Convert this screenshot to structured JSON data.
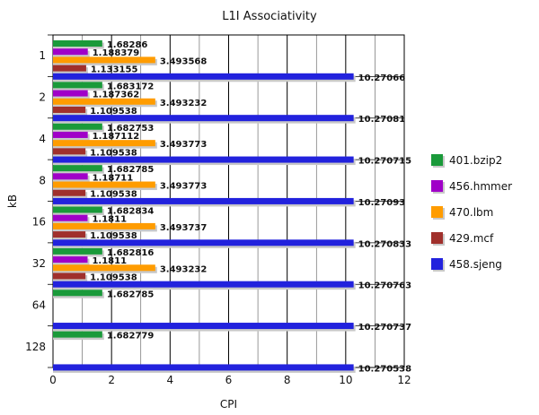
{
  "chart_data": {
    "type": "bar",
    "orientation": "horizontal",
    "title": "L1I Associativity",
    "xlabel": "CPI",
    "ylabel": "kB",
    "xlim": [
      0,
      12
    ],
    "xticks": [
      "0",
      "2",
      "4",
      "6",
      "8",
      "10",
      "12"
    ],
    "grid": true,
    "legend_position": "right",
    "categories": [
      "1",
      "2",
      "4",
      "8",
      "16",
      "32",
      "64",
      "128"
    ],
    "series": [
      {
        "name": "401.bzip2",
        "color": "#1a9a3a",
        "values": [
          1.68286,
          1.683172,
          1.682753,
          1.682785,
          1.682834,
          1.682816,
          1.682785,
          1.682779
        ],
        "labels": [
          "1.68286",
          "1.683172",
          "1.682753",
          "1.682785",
          "1.682834",
          "1.682816",
          "1.682785",
          "1.682779"
        ]
      },
      {
        "name": "456.hmmer",
        "color": "#a000c8",
        "values": [
          1.188379,
          1.187362,
          1.187112,
          1.18711,
          1.1811,
          1.1811,
          null,
          null
        ],
        "labels": [
          "1.188379",
          "1.187362",
          "1.187112",
          "1.18711",
          "1.1811",
          "1.1811",
          "",
          ""
        ]
      },
      {
        "name": "470.lbm",
        "color": "#ff9c00",
        "values": [
          3.493568,
          3.493232,
          3.493773,
          3.493773,
          3.493737,
          3.493232,
          null,
          null
        ],
        "labels": [
          "3.493568",
          "3.493232",
          "3.493773",
          "3.493773",
          "3.493737",
          "3.493232",
          "",
          ""
        ]
      },
      {
        "name": "429.mcf",
        "color": "#a0302c",
        "values": [
          1.133155,
          1.109538,
          1.109538,
          1.109538,
          1.109538,
          1.109538,
          null,
          null
        ],
        "labels": [
          "1.133155",
          "1.109538",
          "1.109538",
          "1.109538",
          "1.109538",
          "1.109538",
          "",
          ""
        ]
      },
      {
        "name": "458.sjeng",
        "color": "#2222dd",
        "values": [
          10.27066,
          10.27081,
          10.270715,
          10.27093,
          10.270833,
          10.270763,
          10.270737,
          10.270538
        ],
        "labels": [
          "10.27066",
          "10.27081",
          "10.270715",
          "10.27093",
          "10.270833",
          "10.270763",
          "10.270737",
          "10.270538"
        ]
      }
    ]
  }
}
